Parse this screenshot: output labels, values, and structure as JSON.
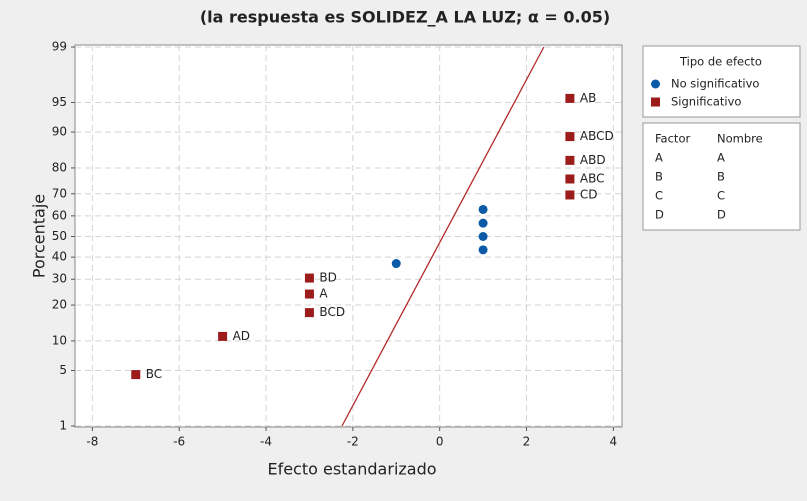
{
  "chart_data": {
    "type": "scatter",
    "yscale": "probability",
    "subtitle": "(la respuesta es SOLIDEZ_A LA LUZ; α = 0.05)",
    "xlabel": "Efecto estandarizado",
    "ylabel": "Porcentaje",
    "xlim": [
      -8.4,
      4.2
    ],
    "xticks": [
      -8,
      -6,
      -4,
      -2,
      0,
      2,
      4
    ],
    "ylim": [
      1,
      99
    ],
    "yticks": [
      1,
      5,
      10,
      20,
      30,
      40,
      50,
      60,
      70,
      80,
      90,
      95,
      99
    ],
    "grid": true,
    "series": [
      {
        "name": "No significativo",
        "color": "#0b5aa8",
        "marker": "circle",
        "x": [
          -1,
          1,
          1,
          1,
          1
        ],
        "values": [
          37,
          43.5,
          50,
          56.5,
          63
        ]
      },
      {
        "name": "Significativo",
        "color": "#9c1c1c",
        "marker": "square",
        "x": [
          -7,
          -5,
          -3,
          -3,
          -3,
          3,
          3,
          3,
          3,
          3
        ],
        "values": [
          4.5,
          11,
          17.5,
          24,
          30.5,
          69.5,
          76,
          82.5,
          89,
          95.5
        ],
        "point_labels": [
          "BC",
          "AD",
          "BCD",
          "A",
          "BD",
          "CD",
          "ABC",
          "ABD",
          "ABCD",
          "AB"
        ]
      }
    ],
    "reference_line": {
      "color": "#b22a2a",
      "x": [
        -2.25,
        2.4
      ],
      "values": [
        1,
        99
      ]
    },
    "legend": {
      "title": "Tipo de efecto",
      "position": "right"
    },
    "factor_table": {
      "headers": [
        "Factor",
        "Nombre"
      ],
      "rows": [
        [
          "A",
          "A"
        ],
        [
          "B",
          "B"
        ],
        [
          "C",
          "C"
        ],
        [
          "D",
          "D"
        ]
      ]
    }
  }
}
